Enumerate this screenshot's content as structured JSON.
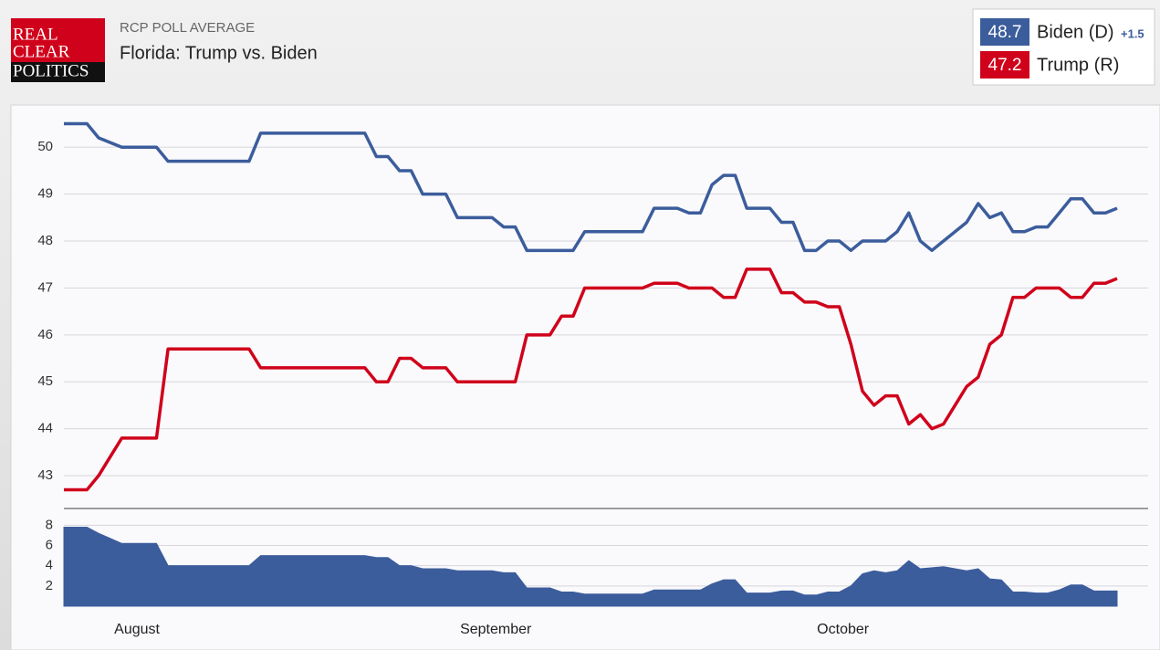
{
  "header": {
    "logo": [
      "REAL",
      "CLEAR",
      "POLITICS"
    ],
    "kicker": "RCP POLL AVERAGE",
    "title": "Florida: Trump vs. Biden"
  },
  "legend": {
    "lead_label": "+1.5"
  },
  "chart_data": [
    {
      "type": "line",
      "categories": [
        null,
        null,
        null,
        null,
        null,
        null,
        "August",
        null,
        null,
        null,
        null,
        null,
        null,
        null,
        null,
        null,
        null,
        null,
        null,
        null,
        null,
        null,
        null,
        null,
        null,
        null,
        null,
        null,
        null,
        null,
        null,
        null,
        null,
        null,
        null,
        null,
        null,
        "September",
        null,
        null,
        null,
        null,
        null,
        null,
        null,
        null,
        null,
        null,
        null,
        null,
        null,
        null,
        null,
        null,
        null,
        null,
        null,
        null,
        null,
        null,
        null,
        null,
        null,
        null,
        null,
        null,
        null,
        "October",
        null,
        null,
        null,
        null,
        null,
        null,
        null,
        null,
        null,
        null,
        null,
        null,
        null,
        null,
        null,
        null,
        null,
        null,
        null,
        null,
        null,
        null,
        null,
        null
      ],
      "series": [
        {
          "name": "Biden (D)",
          "color": "#3c5d9c",
          "values": [
            50.5,
            50.5,
            50.5,
            50.2,
            50.1,
            50.0,
            50.0,
            50.0,
            50.0,
            49.7,
            49.7,
            49.7,
            49.7,
            49.7,
            49.7,
            49.7,
            49.7,
            50.3,
            50.3,
            50.3,
            50.3,
            50.3,
            50.3,
            50.3,
            50.3,
            50.3,
            50.3,
            49.8,
            49.8,
            49.5,
            49.5,
            49.0,
            49.0,
            49.0,
            48.5,
            48.5,
            48.5,
            48.5,
            48.3,
            48.3,
            47.8,
            47.8,
            47.8,
            47.8,
            47.8,
            48.2,
            48.2,
            48.2,
            48.2,
            48.2,
            48.2,
            48.7,
            48.7,
            48.7,
            48.6,
            48.6,
            49.2,
            49.4,
            49.4,
            48.7,
            48.7,
            48.7,
            48.4,
            48.4,
            47.8,
            47.8,
            48.0,
            48.0,
            47.8,
            48.0,
            48.0,
            48.0,
            48.2,
            48.6,
            48.0,
            47.8,
            48.0,
            48.2,
            48.4,
            48.8,
            48.5,
            48.6,
            48.2,
            48.2,
            48.3,
            48.3,
            48.6,
            48.9,
            48.9,
            48.6,
            48.6,
            48.7
          ]
        },
        {
          "name": "Trump (R)",
          "color": "#d0021b",
          "values": [
            42.7,
            42.7,
            42.7,
            43.0,
            43.4,
            43.8,
            43.8,
            43.8,
            43.8,
            45.7,
            45.7,
            45.7,
            45.7,
            45.7,
            45.7,
            45.7,
            45.7,
            45.3,
            45.3,
            45.3,
            45.3,
            45.3,
            45.3,
            45.3,
            45.3,
            45.3,
            45.3,
            45.0,
            45.0,
            45.5,
            45.5,
            45.3,
            45.3,
            45.3,
            45.0,
            45.0,
            45.0,
            45.0,
            45.0,
            45.0,
            46.0,
            46.0,
            46.0,
            46.4,
            46.4,
            47.0,
            47.0,
            47.0,
            47.0,
            47.0,
            47.0,
            47.1,
            47.1,
            47.1,
            47.0,
            47.0,
            47.0,
            46.8,
            46.8,
            47.4,
            47.4,
            47.4,
            46.9,
            46.9,
            46.7,
            46.7,
            46.6,
            46.6,
            45.8,
            44.8,
            44.5,
            44.7,
            44.7,
            44.1,
            44.3,
            44.0,
            44.1,
            44.5,
            44.9,
            45.1,
            45.8,
            46.0,
            46.8,
            46.8,
            47.0,
            47.0,
            47.0,
            46.8,
            46.8,
            47.1,
            47.1,
            47.2
          ]
        }
      ],
      "ylim": [
        42.3,
        50.9
      ],
      "yticks": [
        43,
        44,
        45,
        46,
        47,
        48,
        49,
        50
      ],
      "grid": true
    },
    {
      "type": "area",
      "color": "#3c5d9c",
      "values": [
        7.8,
        7.8,
        7.8,
        7.2,
        6.7,
        6.2,
        6.2,
        6.2,
        6.2,
        4.0,
        4.0,
        4.0,
        4.0,
        4.0,
        4.0,
        4.0,
        4.0,
        5.0,
        5.0,
        5.0,
        5.0,
        5.0,
        5.0,
        5.0,
        5.0,
        5.0,
        5.0,
        4.8,
        4.8,
        4.0,
        4.0,
        3.7,
        3.7,
        3.7,
        3.5,
        3.5,
        3.5,
        3.5,
        3.3,
        3.3,
        1.8,
        1.8,
        1.8,
        1.4,
        1.4,
        1.2,
        1.2,
        1.2,
        1.2,
        1.2,
        1.2,
        1.6,
        1.6,
        1.6,
        1.6,
        1.6,
        2.2,
        2.6,
        2.6,
        1.3,
        1.3,
        1.3,
        1.5,
        1.5,
        1.1,
        1.1,
        1.4,
        1.4,
        2.0,
        3.2,
        3.5,
        3.3,
        3.5,
        4.5,
        3.7,
        3.8,
        3.9,
        3.7,
        3.5,
        3.7,
        2.7,
        2.6,
        1.4,
        1.4,
        1.3,
        1.3,
        1.6,
        2.1,
        2.1,
        1.5,
        1.5,
        1.5
      ],
      "ylim": [
        0,
        8.3
      ],
      "yticks": [
        2,
        4,
        6,
        8
      ],
      "grid": true
    }
  ]
}
